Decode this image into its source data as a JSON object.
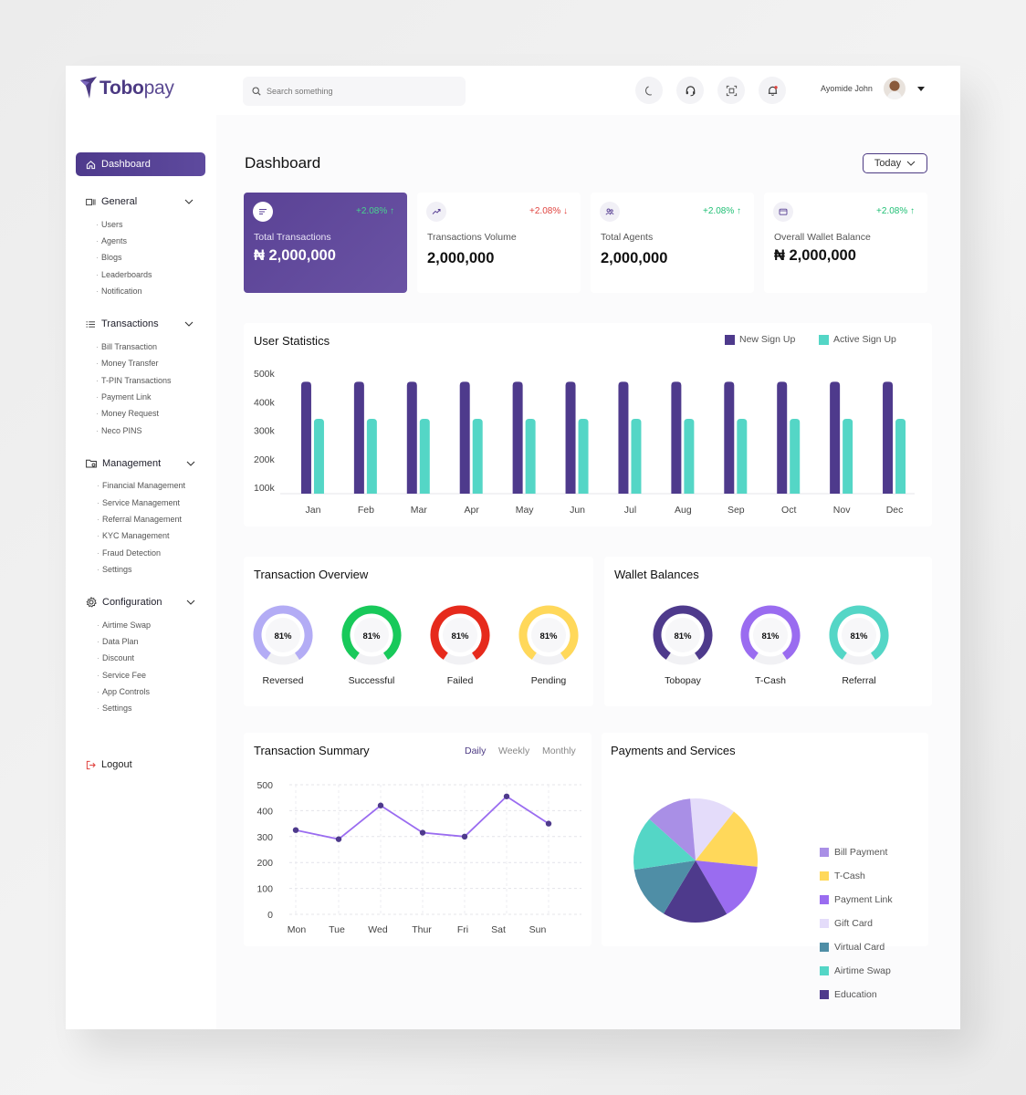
{
  "brand": {
    "name_bold": "Tobo",
    "name_light": "pay"
  },
  "search": {
    "placeholder": "Search something"
  },
  "header": {
    "user_name": "Ayomide John"
  },
  "sidebar": {
    "active": "Dashboard",
    "sections": [
      {
        "label": "General",
        "items": [
          "Users",
          "Agents",
          "Blogs",
          "Leaderboards",
          "Notification"
        ]
      },
      {
        "label": "Transactions",
        "items": [
          "Bill Transaction",
          "Money Transfer",
          "T-PIN Transactions",
          "Payment Link",
          "Money Request",
          "Neco PINS"
        ]
      },
      {
        "label": "Management",
        "items": [
          "Financial Management",
          "Service Management",
          "Referral Management",
          "KYC Management",
          "Fraud Detection",
          "Settings"
        ]
      },
      {
        "label": "Configuration",
        "items": [
          "Airtime Swap",
          "Data Plan",
          "Discount",
          "Service Fee",
          "App Controls",
          "Settings"
        ]
      }
    ],
    "logout": "Logout"
  },
  "main": {
    "title": "Dashboard",
    "period": "Today",
    "cards": [
      {
        "label": "Total Transactions",
        "value": "₦ 2,000,000",
        "delta": "+2.08%",
        "trend": "up"
      },
      {
        "label": "Transactions Volume",
        "value": "2,000,000",
        "delta": "+2.08%",
        "trend": "down"
      },
      {
        "label": "Total Agents",
        "value": "2,000,000",
        "delta": "+2.08%",
        "trend": "up"
      },
      {
        "label": "Overall Wallet Balance",
        "value": "₦ 2,000,000",
        "delta": "+2.08%",
        "trend": "up"
      }
    ],
    "user_stats_title": "User Statistics",
    "transaction_overview": {
      "title": "Transaction Overview",
      "items": [
        {
          "label": "Reversed",
          "percent": 81,
          "display": "81%",
          "color": "#b3acf5"
        },
        {
          "label": "Successful",
          "percent": 81,
          "display": "81%",
          "color": "#18c95a"
        },
        {
          "label": "Failed",
          "percent": 81,
          "display": "81%",
          "color": "#e62a1c"
        },
        {
          "label": "Pending",
          "percent": 81,
          "display": "81%",
          "color": "#ffd85a"
        }
      ]
    },
    "wallet_balances": {
      "title": "Wallet Balances",
      "items": [
        {
          "label": "Tobopay",
          "percent": 81,
          "display": "81%",
          "color": "#4e3a8c"
        },
        {
          "label": "T-Cash",
          "percent": 81,
          "display": "81%",
          "color": "#9a6cf0"
        },
        {
          "label": "Referral",
          "percent": 81,
          "display": "81%",
          "color": "#54d6c6"
        }
      ]
    },
    "summary_title": "Transaction Summary",
    "summary_tabs": [
      "Daily",
      "Weekly",
      "Monthly"
    ],
    "payments_title": "Payments and Services"
  },
  "chart_data": [
    {
      "type": "bar",
      "title": "User Statistics",
      "categories": [
        "Jan",
        "Feb",
        "Mar",
        "Apr",
        "May",
        "Jun",
        "Jul",
        "Aug",
        "Sep",
        "Oct",
        "Nov",
        "Dec"
      ],
      "series": [
        {
          "name": "New Sign Up",
          "color": "#4e3a8c",
          "values": [
            470000,
            470000,
            470000,
            470000,
            470000,
            470000,
            470000,
            470000,
            470000,
            470000,
            470000,
            470000
          ]
        },
        {
          "name": "Active Sign Up",
          "color": "#54d6c6",
          "values": [
            340000,
            340000,
            340000,
            340000,
            340000,
            340000,
            340000,
            340000,
            340000,
            340000,
            340000,
            340000
          ]
        }
      ],
      "ylim": [
        100000,
        500000
      ],
      "yticks": [
        "100k",
        "200k",
        "300k",
        "400k",
        "500k"
      ],
      "legend": "top-right"
    },
    {
      "type": "line",
      "title": "Transaction Summary",
      "categories": [
        "Mon",
        "Tue",
        "Wed",
        "Thur",
        "Fri",
        "Sat",
        "Sun"
      ],
      "series": [
        {
          "color": "#9a6cf0",
          "values": [
            325,
            290,
            420,
            315,
            300,
            455,
            350
          ]
        }
      ],
      "ylim": [
        0,
        500
      ],
      "yticks": [
        "0",
        "100",
        "200",
        "300",
        "400",
        "500"
      ],
      "grid": true
    },
    {
      "type": "pie",
      "title": "Payments and Services",
      "slices": [
        {
          "name": "Bill Payment",
          "value": 12,
          "color": "#a98fe6"
        },
        {
          "name": "T-Cash",
          "value": 16,
          "color": "#ffd85a"
        },
        {
          "name": "Payment Link",
          "value": 15,
          "color": "#9a6cf0"
        },
        {
          "name": "Gift Card",
          "value": 12,
          "color": "#e4dcfa"
        },
        {
          "name": "Virtual Card",
          "value": 14,
          "color": "#4f8ea6"
        },
        {
          "name": "Airtime Swap",
          "value": 14,
          "color": "#54d6c6"
        },
        {
          "name": "Education",
          "value": 17,
          "color": "#4e3a8c"
        }
      ],
      "legend": "right"
    }
  ]
}
